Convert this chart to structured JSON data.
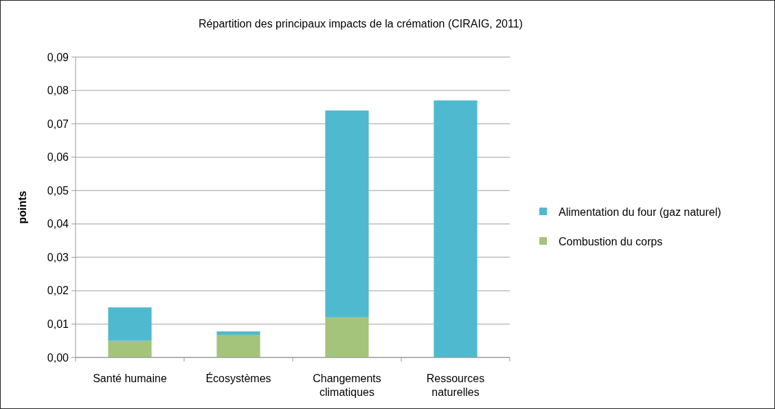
{
  "chart_data": {
    "type": "bar",
    "title": "Répartition des principaux impacts de la crémation (CIRAIG, 2011)",
    "ylabel": "points",
    "categories": [
      "Santé humaine",
      "Écosystèmes",
      "Changements climatiques",
      "Ressources naturelles"
    ],
    "series": [
      {
        "name": "Combustion du corps",
        "color": "#a3c47a",
        "values": [
          0.005,
          0.0068,
          0.012,
          0
        ]
      },
      {
        "name": "Alimentation du four (gaz naturel)",
        "color": "#4fb9cf",
        "values": [
          0.01,
          0.001,
          0.062,
          0.077
        ]
      }
    ],
    "stacked": true,
    "ylim": [
      0,
      0.09
    ],
    "yticks": [
      {
        "value": 0,
        "label": "0,00"
      },
      {
        "value": 0.01,
        "label": "0,01"
      },
      {
        "value": 0.02,
        "label": "0,02"
      },
      {
        "value": 0.03,
        "label": "0,03"
      },
      {
        "value": 0.04,
        "label": "0,04"
      },
      {
        "value": 0.05,
        "label": "0,05"
      },
      {
        "value": 0.06,
        "label": "0,06"
      },
      {
        "value": 0.07,
        "label": "0,07"
      },
      {
        "value": 0.08,
        "label": "0,08"
      },
      {
        "value": 0.09,
        "label": "0,09"
      }
    ],
    "grid": "y",
    "legend": "right"
  }
}
